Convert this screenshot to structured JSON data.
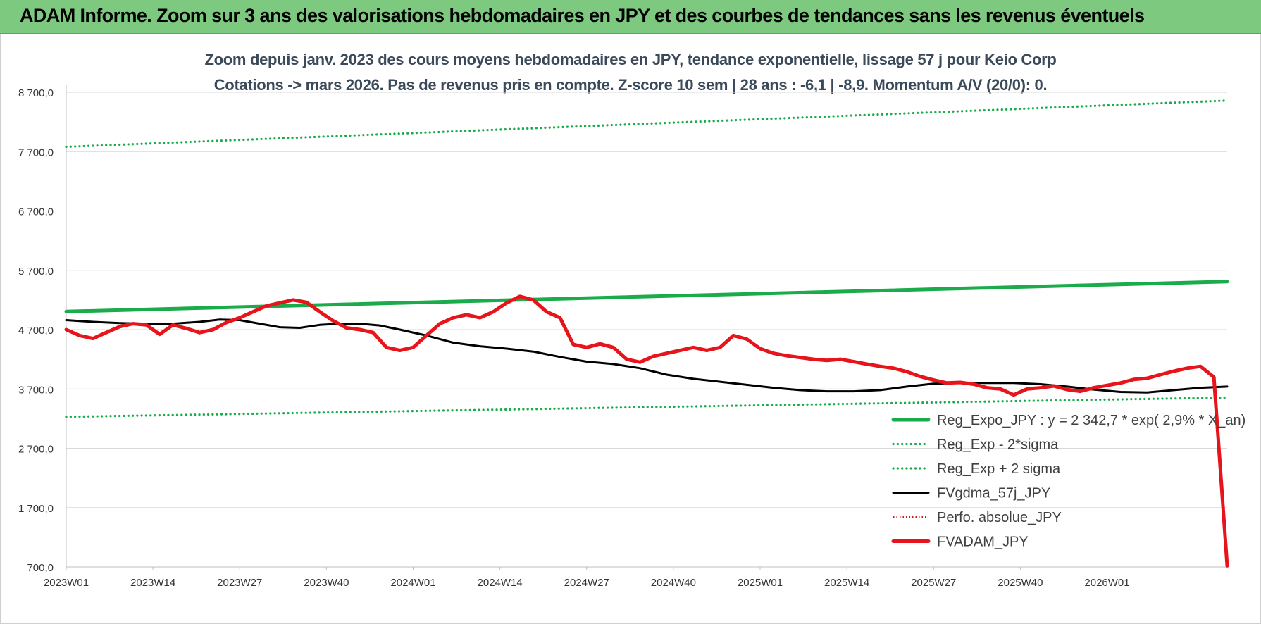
{
  "header": {
    "banner_title": "ADAM Informe. Zoom sur 3 ans des valorisations hebdomadaires en JPY et des courbes de tendances sans les revenus éventuels"
  },
  "colors": {
    "banner_bg": "#7dc97f",
    "trend_green": "#1aab4b",
    "band_green": "#1aab4b",
    "gdma_black": "#000000",
    "perfo_red": "#cc1a1a",
    "fvadam_red": "#e8141b",
    "grid": "#d9d9d9"
  },
  "chart_data": {
    "type": "line",
    "title": "Zoom depuis janv. 2023 des cours moyens hebdomadaires en JPY, tendance exponentielle, lissage 57 j pour Keio Corp",
    "subtitle": "Cotations -> mars 2026. Pas de revenus pris en compte. Z-score 10 sem | 28 ans : -6,1 | -8,9. Momentum A/V (20/0): 0.",
    "xlabel": "",
    "ylabel": "",
    "ylim": [
      700,
      8700
    ],
    "yticks": [
      "8 700,0",
      "7 700,0",
      "6 700,0",
      "5 700,0",
      "4 700,0",
      "3 700,0",
      "2 700,0",
      "1 700,0",
      "700,0"
    ],
    "ytick_values": [
      8700,
      7700,
      6700,
      5700,
      4700,
      3700,
      2700,
      1700,
      700
    ],
    "xticks": [
      "2023W01",
      "2023W14",
      "2023W27",
      "2023W40",
      "2024W01",
      "2024W14",
      "2024W27",
      "2024W40",
      "2025W01",
      "2025W14",
      "2025W27",
      "2025W40",
      "2026W01"
    ],
    "xtick_weeks": [
      1,
      14,
      27,
      40,
      53,
      66,
      79,
      92,
      105,
      118,
      131,
      144,
      157
    ],
    "x_range_weeks": [
      1,
      175
    ],
    "grid": "horizontal",
    "legend_position": "bottom-right",
    "series": [
      {
        "name": "Reg_Expo_JPY : y = 2 342,7 * exp( 2,9% * X_an)",
        "style": "solid-thick",
        "color": "#1aab4b",
        "points": [
          [
            1,
            5005
          ],
          [
            175,
            5510
          ]
        ]
      },
      {
        "name": "Reg_Exp - 2*sigma",
        "style": "dotted",
        "color": "#1aab4b",
        "points": [
          [
            1,
            3230
          ],
          [
            175,
            3555
          ]
        ]
      },
      {
        "name": "Reg_Exp + 2 sigma",
        "style": "dotted",
        "color": "#1aab4b",
        "points": [
          [
            1,
            7780
          ],
          [
            175,
            8560
          ]
        ]
      },
      {
        "name": "FVgdma_57j_JPY",
        "style": "solid",
        "color": "#000000",
        "points": [
          [
            1,
            4860
          ],
          [
            5,
            4830
          ],
          [
            9,
            4810
          ],
          [
            13,
            4800
          ],
          [
            17,
            4800
          ],
          [
            21,
            4830
          ],
          [
            24,
            4870
          ],
          [
            27,
            4860
          ],
          [
            30,
            4800
          ],
          [
            33,
            4740
          ],
          [
            36,
            4730
          ],
          [
            39,
            4780
          ],
          [
            42,
            4800
          ],
          [
            45,
            4800
          ],
          [
            48,
            4770
          ],
          [
            51,
            4700
          ],
          [
            55,
            4600
          ],
          [
            59,
            4480
          ],
          [
            63,
            4420
          ],
          [
            67,
            4380
          ],
          [
            71,
            4330
          ],
          [
            75,
            4240
          ],
          [
            79,
            4160
          ],
          [
            83,
            4120
          ],
          [
            87,
            4050
          ],
          [
            91,
            3940
          ],
          [
            95,
            3870
          ],
          [
            99,
            3820
          ],
          [
            103,
            3770
          ],
          [
            107,
            3720
          ],
          [
            111,
            3680
          ],
          [
            115,
            3660
          ],
          [
            119,
            3660
          ],
          [
            123,
            3680
          ],
          [
            127,
            3740
          ],
          [
            131,
            3790
          ],
          [
            135,
            3800
          ],
          [
            139,
            3800
          ],
          [
            143,
            3800
          ],
          [
            147,
            3780
          ],
          [
            151,
            3740
          ],
          [
            155,
            3690
          ],
          [
            159,
            3650
          ],
          [
            163,
            3640
          ],
          [
            167,
            3680
          ],
          [
            171,
            3720
          ],
          [
            175,
            3740
          ]
        ]
      },
      {
        "name": "Perfo. absolue_JPY",
        "style": "dotted-thin",
        "color": "#cc1a1a",
        "points": []
      },
      {
        "name": "FVADAM_JPY",
        "style": "solid-thick",
        "color": "#e8141b",
        "points": [
          [
            1,
            4700
          ],
          [
            3,
            4600
          ],
          [
            5,
            4550
          ],
          [
            7,
            4650
          ],
          [
            9,
            4750
          ],
          [
            11,
            4800
          ],
          [
            13,
            4780
          ],
          [
            15,
            4620
          ],
          [
            17,
            4780
          ],
          [
            19,
            4720
          ],
          [
            21,
            4650
          ],
          [
            23,
            4700
          ],
          [
            25,
            4820
          ],
          [
            27,
            4900
          ],
          [
            29,
            5000
          ],
          [
            31,
            5100
          ],
          [
            33,
            5150
          ],
          [
            35,
            5200
          ],
          [
            37,
            5160
          ],
          [
            39,
            5000
          ],
          [
            41,
            4850
          ],
          [
            43,
            4730
          ],
          [
            45,
            4700
          ],
          [
            47,
            4650
          ],
          [
            49,
            4400
          ],
          [
            51,
            4350
          ],
          [
            53,
            4400
          ],
          [
            55,
            4600
          ],
          [
            57,
            4800
          ],
          [
            59,
            4900
          ],
          [
            61,
            4950
          ],
          [
            63,
            4900
          ],
          [
            65,
            5000
          ],
          [
            67,
            5150
          ],
          [
            69,
            5260
          ],
          [
            71,
            5200
          ],
          [
            73,
            5000
          ],
          [
            75,
            4900
          ],
          [
            77,
            4450
          ],
          [
            79,
            4400
          ],
          [
            81,
            4460
          ],
          [
            83,
            4400
          ],
          [
            85,
            4200
          ],
          [
            87,
            4150
          ],
          [
            89,
            4250
          ],
          [
            91,
            4300
          ],
          [
            93,
            4350
          ],
          [
            95,
            4400
          ],
          [
            97,
            4350
          ],
          [
            99,
            4400
          ],
          [
            101,
            4600
          ],
          [
            103,
            4540
          ],
          [
            105,
            4380
          ],
          [
            107,
            4300
          ],
          [
            109,
            4260
          ],
          [
            111,
            4230
          ],
          [
            113,
            4200
          ],
          [
            115,
            4180
          ],
          [
            117,
            4200
          ],
          [
            119,
            4160
          ],
          [
            121,
            4120
          ],
          [
            123,
            4080
          ],
          [
            125,
            4050
          ],
          [
            127,
            3990
          ],
          [
            129,
            3910
          ],
          [
            131,
            3850
          ],
          [
            133,
            3800
          ],
          [
            135,
            3810
          ],
          [
            137,
            3780
          ],
          [
            139,
            3720
          ],
          [
            141,
            3700
          ],
          [
            143,
            3600
          ],
          [
            145,
            3700
          ],
          [
            147,
            3720
          ],
          [
            149,
            3750
          ],
          [
            151,
            3690
          ],
          [
            153,
            3660
          ],
          [
            155,
            3720
          ],
          [
            157,
            3760
          ],
          [
            159,
            3800
          ],
          [
            161,
            3860
          ],
          [
            163,
            3880
          ],
          [
            165,
            3940
          ],
          [
            167,
            4000
          ],
          [
            169,
            4050
          ],
          [
            171,
            4080
          ],
          [
            173,
            3900
          ],
          [
            175,
            720
          ]
        ]
      }
    ]
  }
}
